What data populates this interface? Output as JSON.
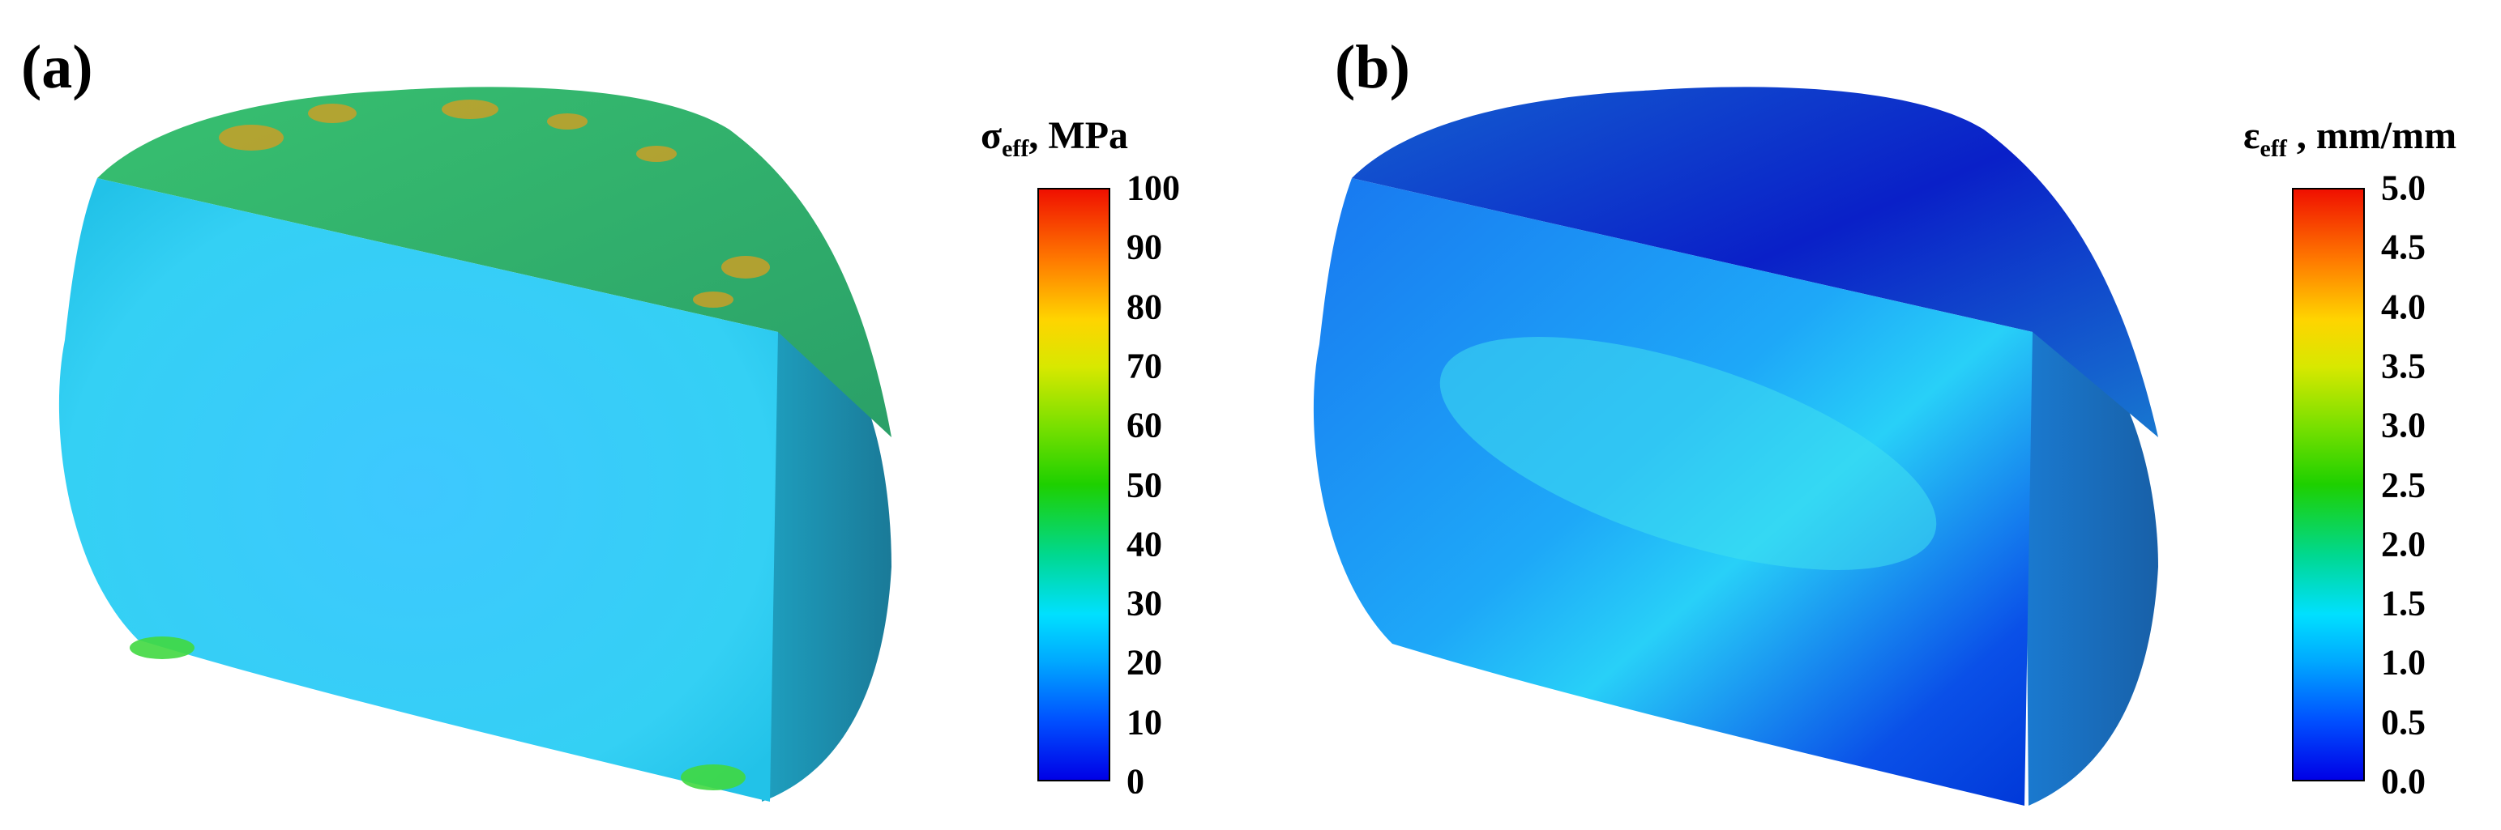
{
  "panels": [
    {
      "label": "(a)",
      "colorbar": {
        "symbol": "σ",
        "subscript": "eff",
        "unit": ", MPa",
        "ticks": [
          "100",
          "90",
          "80",
          "70",
          "60",
          "50",
          "40",
          "30",
          "20",
          "10",
          "0"
        ],
        "range": [
          0,
          100
        ]
      },
      "colors": {
        "face": "#2ec9f4",
        "top": "#2aa86a",
        "side": "#1f8fb0"
      }
    },
    {
      "label": "(b)",
      "colorbar": {
        "symbol": "ε",
        "subscript": "eff",
        "unit": " , mm/mm",
        "ticks": [
          "5.0",
          "4.5",
          "4.0",
          "3.5",
          "3.0",
          "2.5",
          "2.0",
          "1.5",
          "1.0",
          "0.5",
          "0.0"
        ],
        "range": [
          0.0,
          5.0
        ]
      },
      "colors": {
        "face": "#1f8ff0",
        "top": "#0a2fd0",
        "side": "#1c6fc0"
      }
    }
  ],
  "colormap": [
    "#0000e6",
    "#0050ff",
    "#00a8ff",
    "#00e0ff",
    "#00d890",
    "#1ed000",
    "#7ae000",
    "#d8e800",
    "#ffd400",
    "#ff7a00",
    "#f01000"
  ]
}
